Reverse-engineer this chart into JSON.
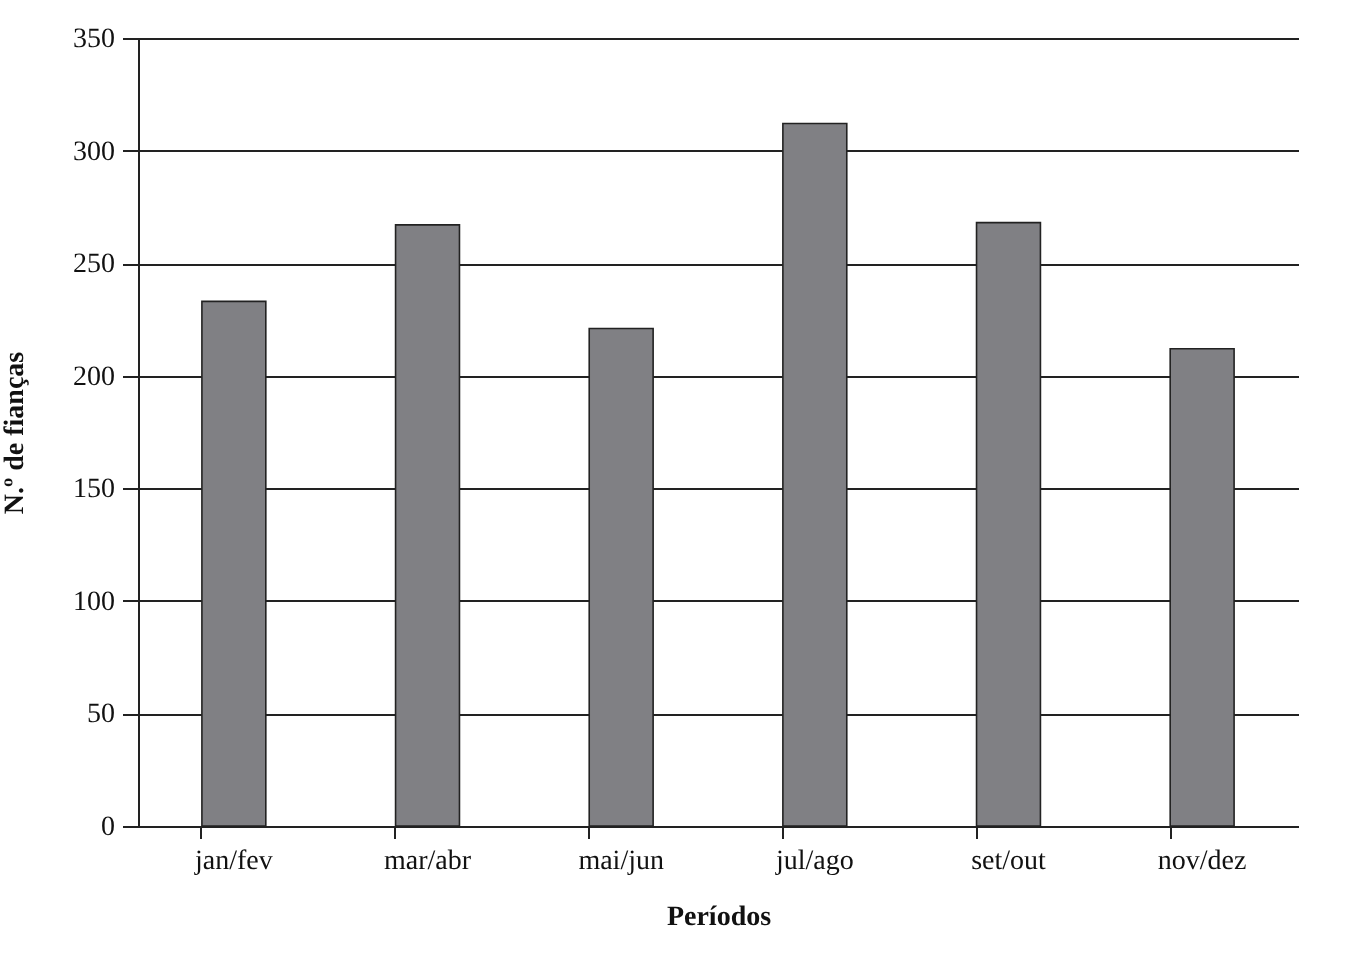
{
  "chart_data": {
    "type": "bar",
    "xlabel": "Períodos",
    "ylabel": "N.º de fianças",
    "categories": [
      "jan/fev",
      "mar/abr",
      "mai/jun",
      "jul/ago",
      "set/out",
      "nov/dez"
    ],
    "values": [
      233,
      267,
      221,
      312,
      268,
      212
    ],
    "color": "#808084",
    "ylim": [
      0,
      350
    ],
    "yticks": [
      0,
      50,
      100,
      150,
      200,
      250,
      300,
      350
    ],
    "grid": "y"
  }
}
